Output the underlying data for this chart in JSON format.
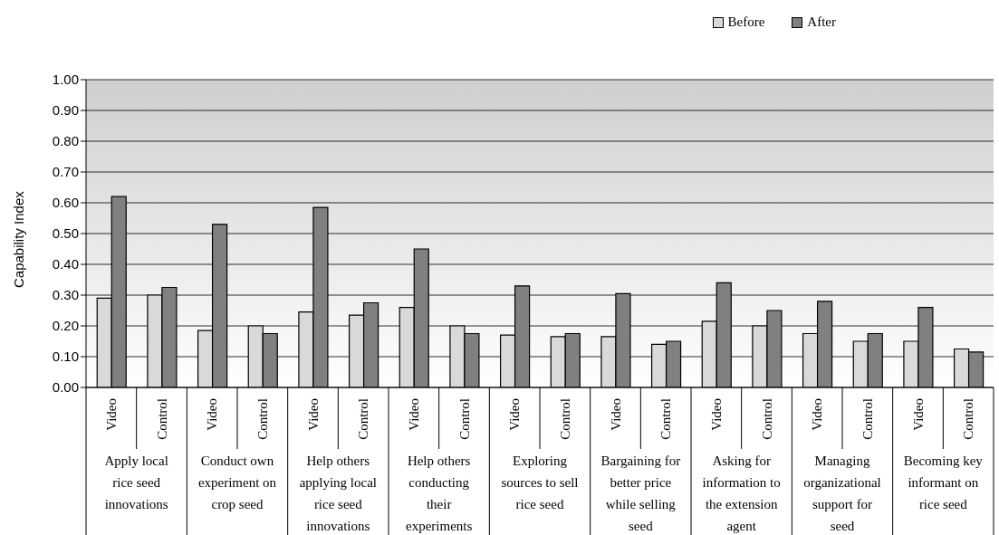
{
  "chart_data": {
    "type": "bar",
    "ylabel": "Capability Index",
    "categories": [
      "Video",
      "Control",
      "Video",
      "Control",
      "Video",
      "Control",
      "Video",
      "Control",
      "Video",
      "Control",
      "Video",
      "Control",
      "Video",
      "Control",
      "Video",
      "Control",
      "Video",
      "Control"
    ],
    "annotations": [
      "Apply local rice seed innovations",
      "Conduct own experiment on crop seed",
      "Help others applying local rice seed innovations",
      "Help others conducting their experiments",
      "Exploring sources to sell rice seed",
      "Bargaining for better price while selling seed",
      "Asking for information to the extension agent",
      "Managing organizational support for seed",
      "Becoming key informant on rice seed"
    ],
    "series": [
      {
        "name": "Before",
        "color": "#d9d9d9",
        "values": [
          0.29,
          0.3,
          0.185,
          0.2,
          0.245,
          0.235,
          0.26,
          0.2,
          0.17,
          0.165,
          0.165,
          0.14,
          0.215,
          0.2,
          0.175,
          0.15,
          0.15,
          0.125
        ]
      },
      {
        "name": "After",
        "color": "#808080",
        "values": [
          0.62,
          0.325,
          0.53,
          0.175,
          0.585,
          0.275,
          0.45,
          0.175,
          0.33,
          0.175,
          0.305,
          0.15,
          0.34,
          0.25,
          0.28,
          0.175,
          0.26,
          0.115
        ]
      }
    ],
    "ylim": [
      0,
      1
    ],
    "yticks": [
      {
        "value": 0,
        "label": "0.00"
      },
      {
        "value": 0.1,
        "label": "0.10"
      },
      {
        "value": 0.2,
        "label": "0.20"
      },
      {
        "value": 0.3,
        "label": "0.30"
      },
      {
        "value": 0.4,
        "label": "0.40"
      },
      {
        "value": 0.5,
        "label": "0.50"
      },
      {
        "value": 0.6,
        "label": "0.60"
      },
      {
        "value": 0.7,
        "label": "0.70"
      },
      {
        "value": 0.8,
        "label": "0.80"
      },
      {
        "value": 0.9,
        "label": "0.90"
      },
      {
        "value": 1,
        "label": "1.00"
      }
    ],
    "grid": "y",
    "legend": "top right"
  }
}
